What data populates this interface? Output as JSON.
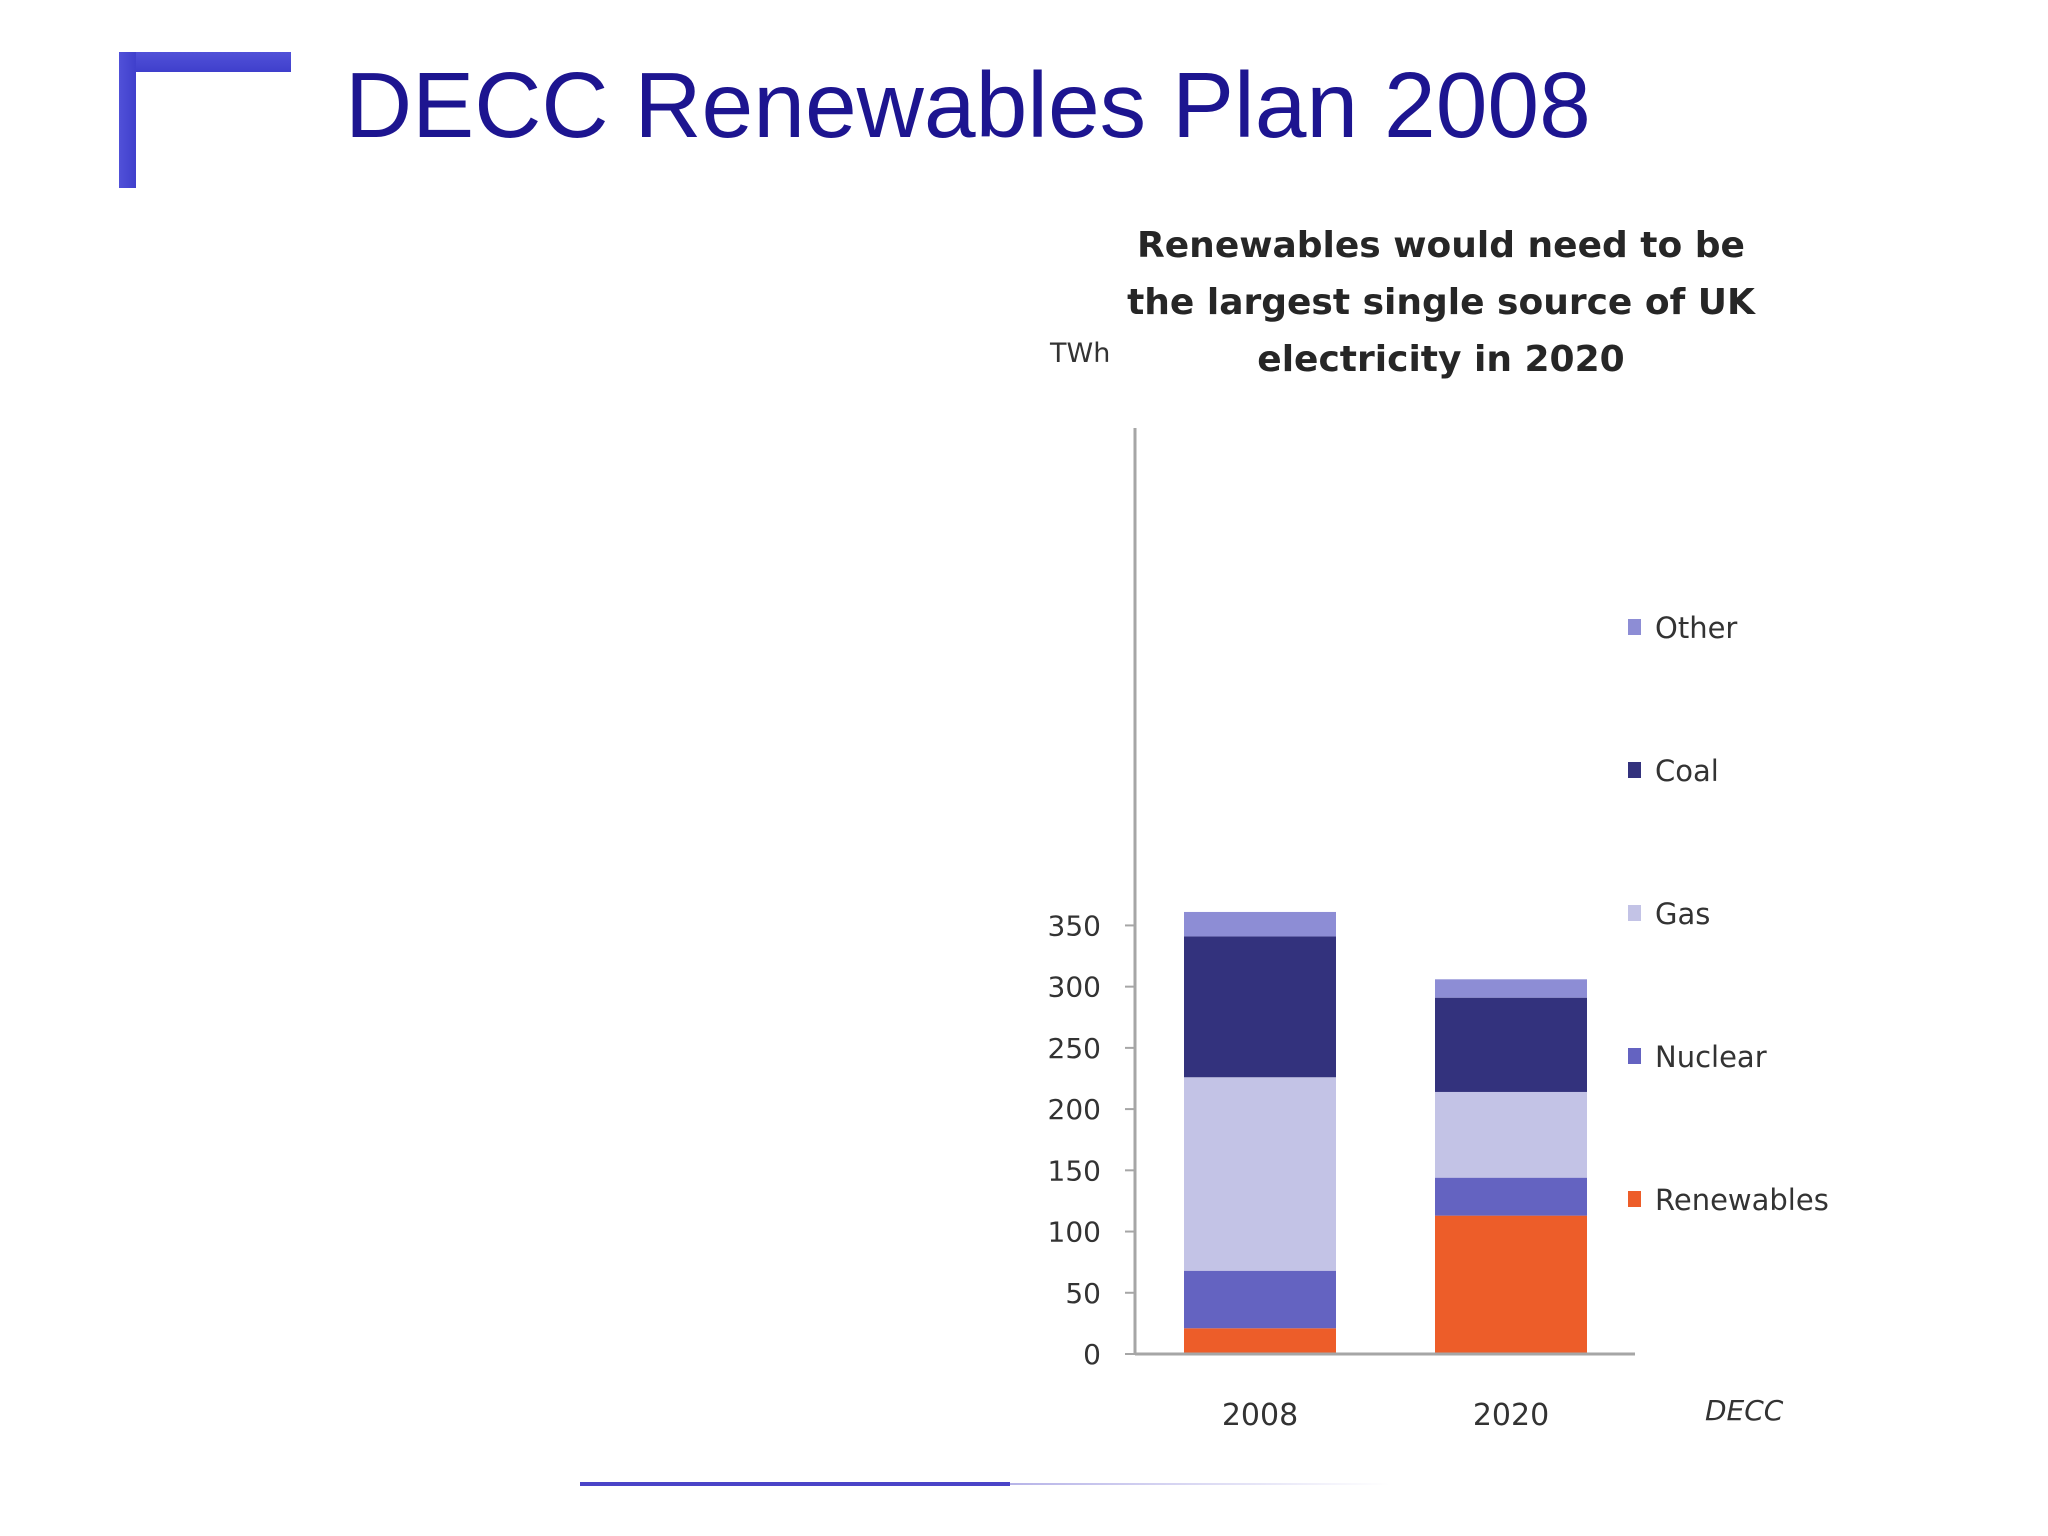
{
  "slide": {
    "title": "DECC Renewables Plan 2008"
  },
  "chart_data": {
    "type": "bar",
    "stacked": true,
    "title_lines": [
      "Renewables would need to be",
      "the largest single source of UK",
      "electricity in 2020"
    ],
    "ylabel": "TWh",
    "source": "DECC",
    "categories": [
      "2008",
      "2020"
    ],
    "ylim": [
      0,
      350
    ],
    "yticks": [
      0,
      50,
      100,
      150,
      200,
      250,
      300,
      350
    ],
    "grid": false,
    "legend_position": "right",
    "series": [
      {
        "name": "Renewables",
        "color": "#ed5d29",
        "values": [
          21,
          113
        ]
      },
      {
        "name": "Nuclear",
        "color": "#6463c1",
        "values": [
          47,
          31
        ]
      },
      {
        "name": "Gas",
        "color": "#c3c3e6",
        "values": [
          158,
          70
        ]
      },
      {
        "name": "Coal",
        "color": "#33327d",
        "values": [
          115,
          77
        ]
      },
      {
        "name": "Other",
        "color": "#8d8dd5",
        "values": [
          20,
          15
        ]
      }
    ]
  }
}
